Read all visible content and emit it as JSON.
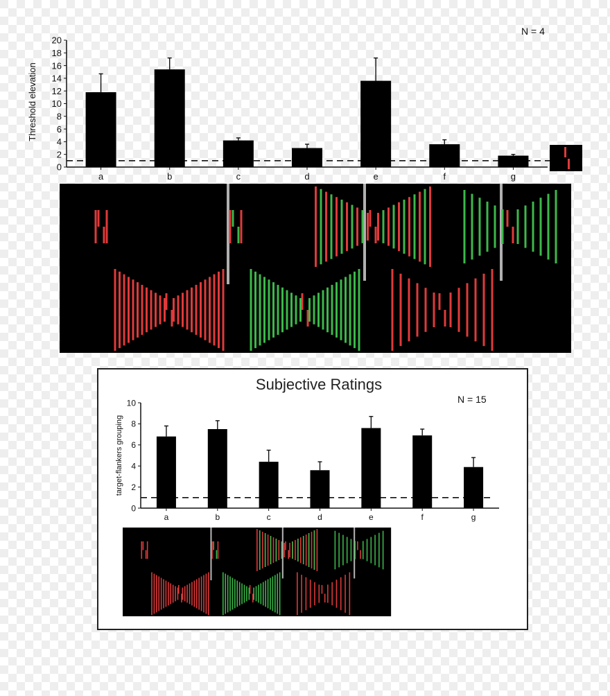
{
  "chart_data": [
    {
      "type": "bar",
      "categories": [
        "a",
        "b",
        "c",
        "d",
        "e",
        "f",
        "g"
      ],
      "values": [
        11.8,
        15.4,
        4.2,
        3.0,
        13.6,
        3.6,
        1.8
      ],
      "errors": [
        2.9,
        1.8,
        0.4,
        0.6,
        3.6,
        0.7,
        0.2
      ],
      "ylabel": "Threshold elevation",
      "ylim": [
        0,
        20
      ],
      "yticks": [
        0,
        2,
        4,
        6,
        8,
        10,
        12,
        14,
        16,
        18,
        20
      ],
      "reference_line": 1,
      "annotation": "N = 4",
      "colors": {
        "bar": "#000000",
        "red": "#e03a3a",
        "green": "#3cb84a",
        "panel": "#000000"
      }
    },
    {
      "type": "bar",
      "title": "Subjective Ratings",
      "categories": [
        "a",
        "b",
        "c",
        "d",
        "e",
        "f",
        "g"
      ],
      "values": [
        6.8,
        7.5,
        4.4,
        3.6,
        7.6,
        6.9,
        3.9
      ],
      "errors": [
        1.0,
        0.8,
        1.1,
        0.8,
        1.1,
        0.6,
        0.9
      ],
      "ylabel": "target-flankers grouping",
      "ylim": [
        0,
        10
      ],
      "yticks": [
        0,
        2,
        4,
        6,
        8,
        10
      ],
      "reference_line": 1,
      "annotation": "N = 15",
      "colors": {
        "bar": "#000000",
        "red": "#e03a3a",
        "green": "#3cb84a",
        "panel": "#000000"
      }
    }
  ]
}
